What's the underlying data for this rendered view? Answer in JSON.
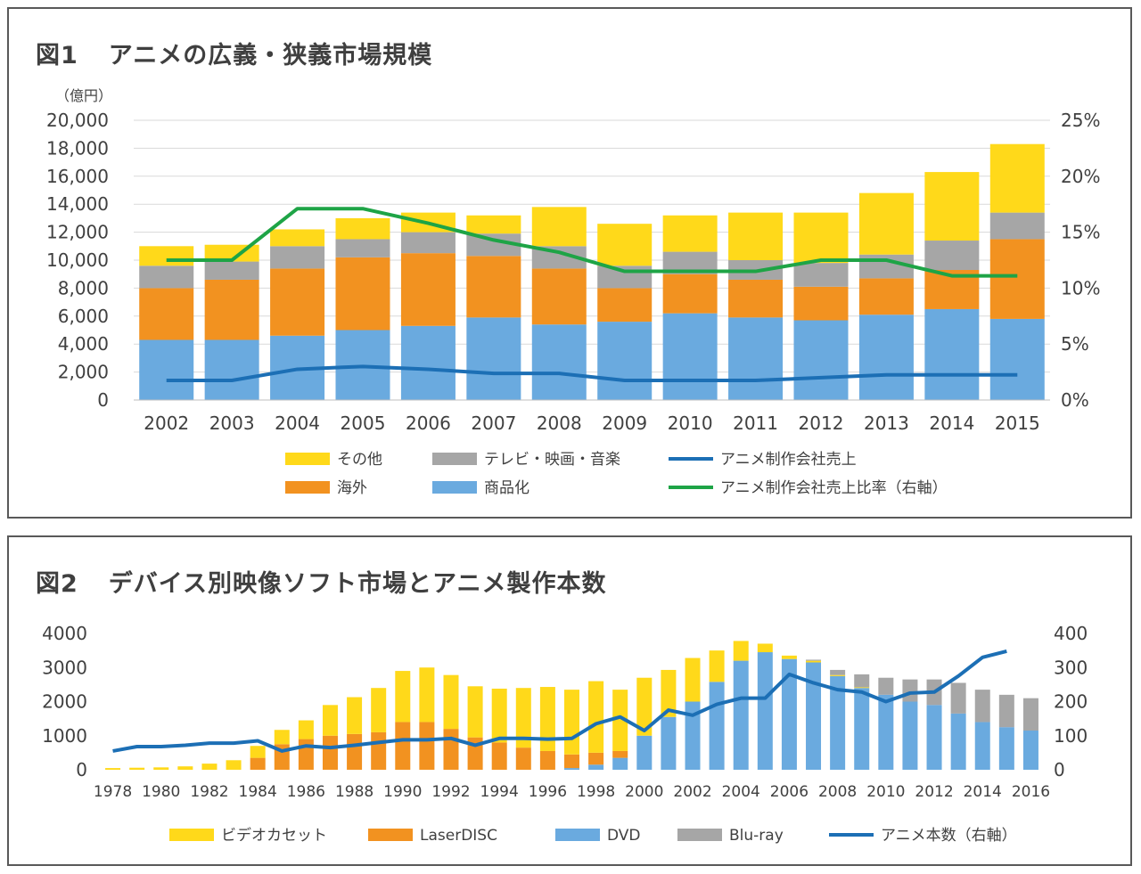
{
  "figure1": {
    "figure_label": "図1",
    "title": "アニメの広義・狭義市場規模",
    "y_unit": "（億円）",
    "legend": {
      "other": "その他",
      "tv": "テレビ・映画・音楽",
      "sales": "アニメ制作会社売上",
      "overseas": "海外",
      "merch": "商品化",
      "ratio": "アニメ制作会社売上比率（右軸）"
    }
  },
  "figure2": {
    "figure_label": "図2",
    "title": "デバイス別映像ソフト市場とアニメ製作本数",
    "legend": {
      "vhs": "ビデオカセット",
      "ld": "LaserDISC",
      "dvd": "DVD",
      "bd": "Blu-ray",
      "count": "アニメ本数（右軸）"
    }
  },
  "colors": {
    "yellow": "#ffd91a",
    "gray": "#a6a6a6",
    "orange": "#f29220",
    "lightblue": "#6aaadf",
    "darkblue": "#1c6fb5",
    "green": "#1ea446",
    "frame": "#595959",
    "title": "#3f3f3f"
  },
  "chart_data": [
    {
      "type": "bar",
      "stacked": true,
      "title": "アニメの広義・狭義市場規模",
      "categories": [
        "2002",
        "2003",
        "2004",
        "2005",
        "2006",
        "2007",
        "2008",
        "2009",
        "2010",
        "2011",
        "2012",
        "2013",
        "2014",
        "2015"
      ],
      "series": [
        {
          "name": "商品化",
          "values": [
            4300,
            4300,
            4600,
            5000,
            5300,
            5900,
            5400,
            5600,
            6200,
            5900,
            5700,
            6100,
            6500,
            5800
          ]
        },
        {
          "name": "海外",
          "values": [
            3700,
            4300,
            4800,
            5200,
            5200,
            4400,
            4000,
            2400,
            2800,
            2700,
            2400,
            2600,
            2800,
            5700
          ]
        },
        {
          "name": "テレビ・映画・音楽",
          "values": [
            1600,
            1300,
            1600,
            1300,
            1500,
            1600,
            1600,
            1600,
            1600,
            1400,
            1700,
            1700,
            2100,
            1900
          ]
        },
        {
          "name": "その他",
          "values": [
            1400,
            1200,
            1200,
            1500,
            1400,
            1300,
            2800,
            3000,
            2600,
            3400,
            3600,
            4400,
            4900,
            4900
          ]
        }
      ],
      "lines": [
        {
          "name": "アニメ制作会社売上",
          "axis": "left",
          "values": [
            1400,
            1400,
            2200,
            2400,
            2200,
            1900,
            1900,
            1400,
            1400,
            1400,
            1600,
            1800,
            1800,
            1800
          ]
        },
        {
          "name": "アニメ制作会社売上比率（右軸）",
          "axis": "right",
          "values": [
            12.5,
            12.5,
            17.1,
            17.1,
            15.8,
            14.3,
            13.2,
            11.5,
            11.5,
            11.5,
            12.5,
            12.5,
            11.1,
            11.1
          ]
        }
      ],
      "ylim": [
        0,
        20000
      ],
      "yticks": [
        "0",
        "2,000",
        "4,000",
        "6,000",
        "8,000",
        "10,000",
        "12,000",
        "14,000",
        "16,000",
        "18,000",
        "20,000"
      ],
      "y2lim": [
        0,
        25
      ],
      "y2ticks": [
        "0%",
        "5%",
        "10%",
        "15%",
        "20%",
        "25%"
      ],
      "ylabel": "（億円）"
    },
    {
      "type": "bar",
      "stacked": true,
      "title": "デバイス別映像ソフト市場とアニメ製作本数",
      "categories": [
        "1978",
        "1979",
        "1980",
        "1981",
        "1982",
        "1983",
        "1984",
        "1985",
        "1986",
        "1987",
        "1988",
        "1989",
        "1990",
        "1991",
        "1992",
        "1993",
        "1994",
        "1995",
        "1996",
        "1997",
        "1998",
        "1999",
        "2000",
        "2001",
        "2002",
        "2003",
        "2004",
        "2005",
        "2006",
        "2007",
        "2008",
        "2009",
        "2010",
        "2011",
        "2012",
        "2013",
        "2014",
        "2015",
        "2016"
      ],
      "tick_labels": [
        "1978",
        "1980",
        "1982",
        "1984",
        "1986",
        "1988",
        "1990",
        "1992",
        "1994",
        "1996",
        "1998",
        "2000",
        "2002",
        "2004",
        "2006",
        "2008",
        "2010",
        "2012",
        "2014",
        "2016"
      ],
      "series": [
        {
          "name": "DVD",
          "values": [
            0,
            0,
            0,
            0,
            0,
            0,
            0,
            0,
            0,
            0,
            0,
            0,
            0,
            0,
            0,
            0,
            0,
            0,
            0,
            50,
            150,
            350,
            1000,
            1550,
            2000,
            2580,
            3200,
            3450,
            3250,
            3150,
            2750,
            2400,
            2200,
            2000,
            1900,
            1650,
            1400,
            1250,
            1150
          ]
        },
        {
          "name": "LaserDISC",
          "values": [
            0,
            0,
            0,
            0,
            0,
            0,
            350,
            750,
            900,
            1000,
            1050,
            1100,
            1400,
            1400,
            1200,
            950,
            800,
            650,
            550,
            400,
            350,
            200,
            0,
            0,
            0,
            0,
            0,
            0,
            0,
            0,
            0,
            0,
            0,
            0,
            0,
            0,
            0,
            0,
            0
          ]
        },
        {
          "name": "ビデオカセット",
          "values": [
            50,
            60,
            70,
            100,
            180,
            280,
            350,
            420,
            550,
            900,
            1080,
            1300,
            1500,
            1600,
            1580,
            1500,
            1580,
            1750,
            1880,
            1900,
            2100,
            1800,
            1700,
            1380,
            1280,
            920,
            580,
            250,
            100,
            50,
            30,
            20,
            0,
            0,
            0,
            0,
            0,
            0,
            0
          ]
        },
        {
          "name": "Blu-ray",
          "values": [
            0,
            0,
            0,
            0,
            0,
            0,
            0,
            0,
            0,
            0,
            0,
            0,
            0,
            0,
            0,
            0,
            0,
            0,
            0,
            0,
            0,
            0,
            0,
            0,
            0,
            0,
            0,
            0,
            0,
            30,
            150,
            380,
            500,
            650,
            750,
            900,
            950,
            950,
            950
          ]
        }
      ],
      "lines": [
        {
          "name": "アニメ本数（右軸）",
          "axis": "right",
          "values": [
            55,
            68,
            68,
            72,
            78,
            78,
            85,
            55,
            70,
            65,
            72,
            80,
            88,
            88,
            92,
            72,
            92,
            92,
            90,
            92,
            135,
            155,
            115,
            175,
            160,
            192,
            210,
            210,
            280,
            255,
            235,
            228,
            200,
            225,
            228,
            275,
            330,
            348,
            null
          ]
        }
      ],
      "ylim": [
        0,
        4000
      ],
      "yticks": [
        "0",
        "1000",
        "2000",
        "3000",
        "4000"
      ],
      "y2lim": [
        0,
        400
      ],
      "y2ticks": [
        "0",
        "100",
        "200",
        "300",
        "400"
      ]
    }
  ]
}
